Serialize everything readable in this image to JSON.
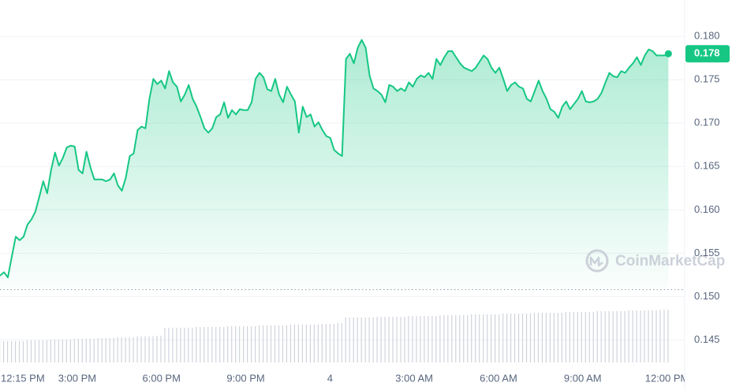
{
  "chart_data": {
    "type": "line",
    "color": "#16c784",
    "x": [
      12.25,
      12.39,
      12.53,
      12.67,
      12.81,
      12.95,
      13.09,
      13.23,
      13.37,
      13.51,
      13.65,
      13.79,
      13.93,
      14.07,
      14.21,
      14.35,
      14.49,
      14.63,
      14.77,
      14.91,
      15.05,
      15.19,
      15.33,
      15.47,
      15.61,
      15.75,
      15.89,
      16.03,
      16.17,
      16.31,
      16.45,
      16.59,
      16.73,
      16.87,
      17.01,
      17.15,
      17.29,
      17.43,
      17.57,
      17.71,
      17.85,
      17.99,
      18.13,
      18.27,
      18.41,
      18.55,
      18.69,
      18.83,
      18.97,
      19.11,
      19.25,
      19.39,
      19.53,
      19.67,
      19.81,
      19.95,
      20.09,
      20.23,
      20.37,
      20.51,
      20.65,
      20.79,
      20.93,
      21.07,
      21.21,
      21.35,
      21.49,
      21.63,
      21.77,
      21.91,
      22.05,
      22.19,
      22.33,
      22.47,
      22.61,
      22.75,
      22.89,
      23.03,
      23.17,
      23.31,
      23.45,
      23.59,
      23.73,
      23.87,
      24.01,
      24.15,
      24.29,
      24.43,
      24.57,
      24.71,
      24.85,
      24.99,
      25.13,
      25.27,
      25.41,
      25.55,
      25.69,
      25.83,
      25.97,
      26.11,
      26.25,
      26.39,
      26.53,
      26.67,
      26.81,
      26.95,
      27.09,
      27.23,
      27.37,
      27.51,
      27.65,
      27.79,
      27.93,
      28.07,
      28.21,
      28.35,
      28.49,
      28.63,
      28.77,
      28.91,
      29.05,
      29.19,
      29.33,
      29.47,
      29.61,
      29.75,
      29.89,
      30.03,
      30.17,
      30.31,
      30.45,
      30.59,
      30.73,
      30.87,
      31.01,
      31.15,
      31.29,
      31.43,
      31.57,
      31.71,
      31.85,
      31.99,
      32.13,
      32.27,
      32.41,
      32.55,
      32.69,
      32.83,
      32.97,
      33.11,
      33.25,
      33.39,
      33.53,
      33.67,
      33.81,
      33.95,
      34.09,
      34.23,
      34.37,
      34.51,
      34.65,
      34.79,
      34.93,
      35.07,
      35.21,
      35.35,
      35.49,
      35.63,
      35.77,
      35.91,
      36.05
    ],
    "values": [
      0.1524,
      0.1528,
      0.1522,
      0.1546,
      0.1569,
      0.1565,
      0.1569,
      0.1583,
      0.1589,
      0.1598,
      0.1615,
      0.1633,
      0.1619,
      0.1646,
      0.1666,
      0.1651,
      0.166,
      0.1672,
      0.1674,
      0.1673,
      0.1646,
      0.1642,
      0.1667,
      0.1649,
      0.1635,
      0.1635,
      0.1635,
      0.1633,
      0.1635,
      0.1642,
      0.1628,
      0.1622,
      0.1637,
      0.1662,
      0.1665,
      0.1692,
      0.1696,
      0.1694,
      0.1728,
      0.1751,
      0.1745,
      0.1749,
      0.174,
      0.176,
      0.1747,
      0.1742,
      0.1725,
      0.1733,
      0.1744,
      0.1728,
      0.1719,
      0.1707,
      0.1694,
      0.1689,
      0.1694,
      0.1707,
      0.171,
      0.1724,
      0.1706,
      0.1715,
      0.171,
      0.1716,
      0.1715,
      0.1715,
      0.1724,
      0.1751,
      0.1758,
      0.1753,
      0.1739,
      0.1737,
      0.1751,
      0.1733,
      0.1724,
      0.1742,
      0.1733,
      0.1725,
      0.1689,
      0.1719,
      0.1707,
      0.171,
      0.1696,
      0.1701,
      0.1692,
      0.1685,
      0.1683,
      0.1669,
      0.1665,
      0.1662,
      0.1774,
      0.178,
      0.1769,
      0.1787,
      0.1796,
      0.1787,
      0.1755,
      0.174,
      0.1737,
      0.1733,
      0.1724,
      0.1744,
      0.1742,
      0.1737,
      0.174,
      0.1737,
      0.1747,
      0.1742,
      0.1751,
      0.1755,
      0.1753,
      0.1758,
      0.1751,
      0.1774,
      0.1767,
      0.1776,
      0.1783,
      0.1783,
      0.1776,
      0.1769,
      0.1764,
      0.1762,
      0.176,
      0.1764,
      0.1771,
      0.1778,
      0.1774,
      0.1764,
      0.1758,
      0.1764,
      0.1751,
      0.1737,
      0.1744,
      0.1747,
      0.1742,
      0.174,
      0.1728,
      0.1725,
      0.1737,
      0.1749,
      0.1737,
      0.1728,
      0.1716,
      0.1713,
      0.1706,
      0.1719,
      0.1725,
      0.1716,
      0.1722,
      0.1728,
      0.1737,
      0.1725,
      0.1724,
      0.1725,
      0.1728,
      0.1735,
      0.1747,
      0.1758,
      0.1754,
      0.1753,
      0.176,
      0.1758,
      0.1764,
      0.1769,
      0.1776,
      0.1767,
      0.1778,
      0.1785,
      0.1783,
      0.1778,
      0.1778,
      0.1778,
      0.178
    ],
    "volume_color": "#cfd3dc",
    "volume": [
      27,
      27,
      27,
      27,
      27,
      27,
      27,
      28,
      28,
      28,
      28,
      28,
      28,
      29,
      29,
      29,
      29,
      29,
      29,
      30,
      30,
      30,
      30,
      30,
      30,
      31,
      31,
      31,
      31,
      31,
      32,
      32,
      32,
      32,
      32,
      33,
      33,
      33,
      33,
      33,
      34,
      34,
      44,
      44,
      44,
      44,
      44,
      44,
      44,
      44,
      45,
      45,
      45,
      45,
      45,
      45,
      45,
      45,
      46,
      46,
      46,
      46,
      46,
      46,
      46,
      46,
      47,
      47,
      47,
      47,
      47,
      47,
      47,
      47,
      48,
      48,
      48,
      48,
      48,
      48,
      48,
      48,
      49,
      49,
      49,
      49,
      50,
      50,
      57,
      57,
      57,
      57,
      57,
      57,
      57,
      57,
      58,
      58,
      58,
      58,
      58,
      58,
      58,
      58,
      59,
      59,
      59,
      59,
      59,
      59,
      59,
      59,
      60,
      60,
      60,
      60,
      60,
      60,
      60,
      60,
      61,
      61,
      61,
      61,
      61,
      61,
      61,
      61,
      62,
      62,
      62,
      62,
      62,
      62,
      62,
      62,
      63,
      63,
      63,
      63,
      63,
      63,
      63,
      63,
      64,
      64,
      64,
      64,
      64,
      64,
      64,
      64,
      65,
      65,
      65,
      65,
      65,
      65,
      65,
      65,
      66,
      66,
      66,
      66,
      66,
      66,
      66,
      66,
      67,
      67,
      67
    ],
    "xlim": [
      12.25,
      36.63
    ],
    "xticks": [
      {
        "value": 12.25,
        "label": "12:15 PM"
      },
      {
        "value": 15,
        "label": "3:00 PM"
      },
      {
        "value": 18,
        "label": "6:00 PM"
      },
      {
        "value": 21,
        "label": "9:00 PM"
      },
      {
        "value": 24,
        "label": "4"
      },
      {
        "value": 27,
        "label": "3:00 AM"
      },
      {
        "value": 30,
        "label": "6:00 AM"
      },
      {
        "value": 33,
        "label": "9:00 AM"
      },
      {
        "value": 36,
        "label": "12:00 PM"
      }
    ],
    "ylim": [
      0.1424,
      0.1842
    ],
    "yticks": [
      {
        "value": 0.18,
        "label": "0.180"
      },
      0.175,
      {
        "value": 0.17,
        "label": "0.170"
      },
      0.165,
      {
        "value": 0.16,
        "label": "0.160"
      },
      0.155,
      {
        "value": 0.15,
        "label": "0.150"
      },
      0.145
    ],
    "grid": true,
    "reference_line": 0.1508,
    "last_price": {
      "value": 0.178,
      "label": "0.178"
    },
    "watermark": "CoinMarketCap"
  }
}
